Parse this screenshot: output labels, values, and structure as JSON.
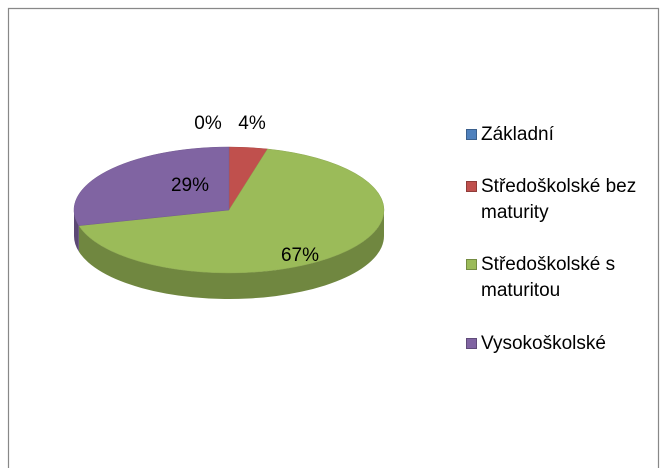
{
  "chart_data": {
    "type": "pie",
    "categories": [
      "Základní",
      "Středoškolské bez maturity",
      "Středoškolské s maturitou",
      "Vysokoškolské"
    ],
    "values": [
      0,
      4,
      67,
      29
    ],
    "value_labels": [
      "0%",
      "4%",
      "67%",
      "29%"
    ],
    "colors": [
      "#4f81bd",
      "#c0504d",
      "#9bbb59",
      "#8064a2"
    ],
    "legend": "right"
  }
}
